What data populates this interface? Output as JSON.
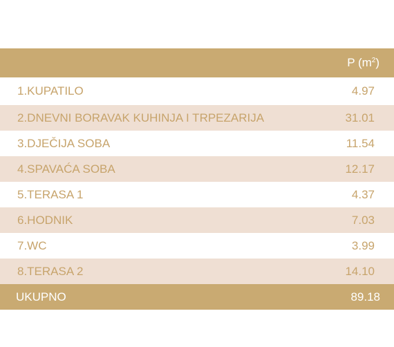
{
  "table": {
    "header": {
      "name": "",
      "value_prefix": "P (m",
      "value_sup": "2",
      "value_suffix": ")"
    },
    "rows": [
      {
        "name": "1.KUPATILO",
        "value": "4.97"
      },
      {
        "name": "2.DNEVNI BORAVAK KUHINJA I TRPEZARIJA",
        "value": "31.01"
      },
      {
        "name": "3.DJEČIJA SOBA",
        "value": "11.54"
      },
      {
        "name": "4.SPAVAĆA SOBA",
        "value": "12.17"
      },
      {
        "name": "5.TERASA 1",
        "value": "4.37"
      },
      {
        "name": "6.HODNIK",
        "value": "7.03"
      },
      {
        "name": "7.WC",
        "value": "3.99"
      },
      {
        "name": "8.TERASA 2",
        "value": "14.10"
      }
    ],
    "total": {
      "name": "UKUPNO",
      "value": "89.18"
    }
  },
  "colors": {
    "header_bg": "#c9aa72",
    "row_alt_bg": "#efdfd3",
    "row_text": "#c7a46c",
    "header_text": "#ffffff"
  }
}
